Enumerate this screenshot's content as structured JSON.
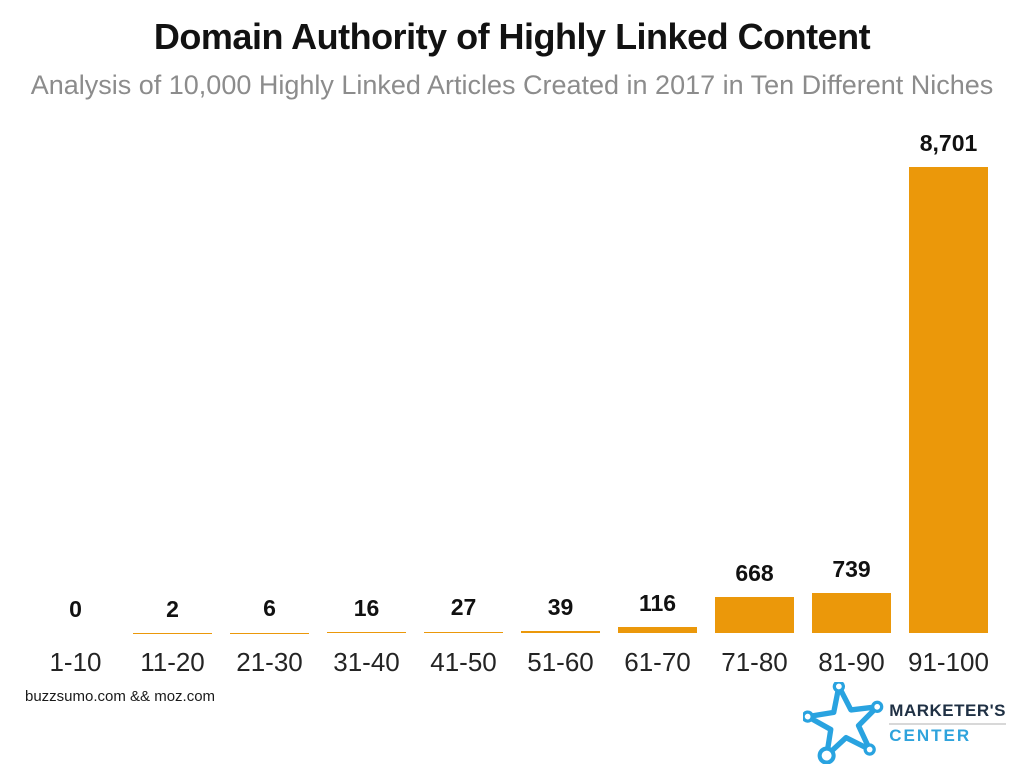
{
  "header": {
    "title": "Domain Authority of Highly Linked Content",
    "subtitle": "Analysis of 10,000 Highly Linked Articles Created in 2017 in Ten Different Niches"
  },
  "chart_data": {
    "type": "bar",
    "title": "Domain Authority of Highly Linked Content",
    "subtitle": "Analysis of 10,000 Highly Linked Articles Created in 2017 in Ten Different Niches",
    "categories": [
      "1-10",
      "11-20",
      "21-30",
      "31-40",
      "41-50",
      "51-60",
      "61-70",
      "71-80",
      "81-90",
      "91-100"
    ],
    "values": [
      0,
      2,
      6,
      16,
      27,
      39,
      116,
      668,
      739,
      8701
    ],
    "value_labels": [
      "0",
      "2",
      "6",
      "16",
      "27",
      "39",
      "116",
      "668",
      "739",
      "8,701"
    ],
    "xlabel": "",
    "ylabel": "",
    "ylim": [
      0,
      8701
    ],
    "grid": false,
    "legend": false,
    "bar_color": "#EB980A"
  },
  "footer": {
    "source": "buzzsumo.com && moz.com",
    "logo": {
      "line1": "MARKETER'S",
      "line2": "CENTER",
      "star_color": "#29A3E0",
      "navy_color": "#1F3044",
      "blue_color": "#2FA3DC"
    }
  }
}
